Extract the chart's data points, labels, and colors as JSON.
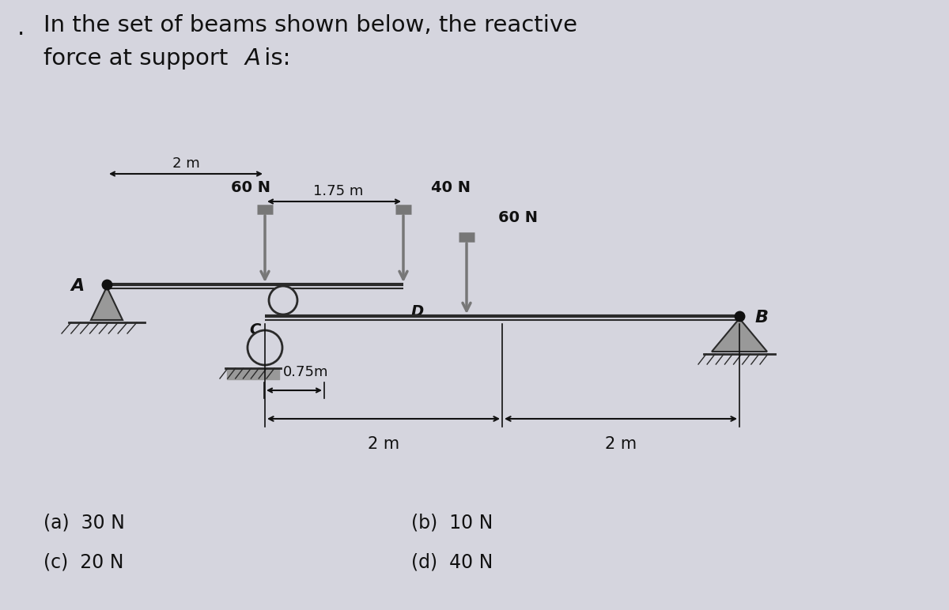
{
  "bg_color": "#d5d5de",
  "title_line1": "In the set of beams shown below, the reactive",
  "title_line2": "force at support  A is:",
  "title_fontsize": 21,
  "answers": [
    "(a)  30 N",
    "(b)  10 N",
    "(c)  20 N",
    "(d)  40 N"
  ],
  "beam_color": "#2a2a2a",
  "arrow_color": "#777777",
  "support_color": "#888888",
  "text_color": "#111111",
  "label_fontsize": 14
}
